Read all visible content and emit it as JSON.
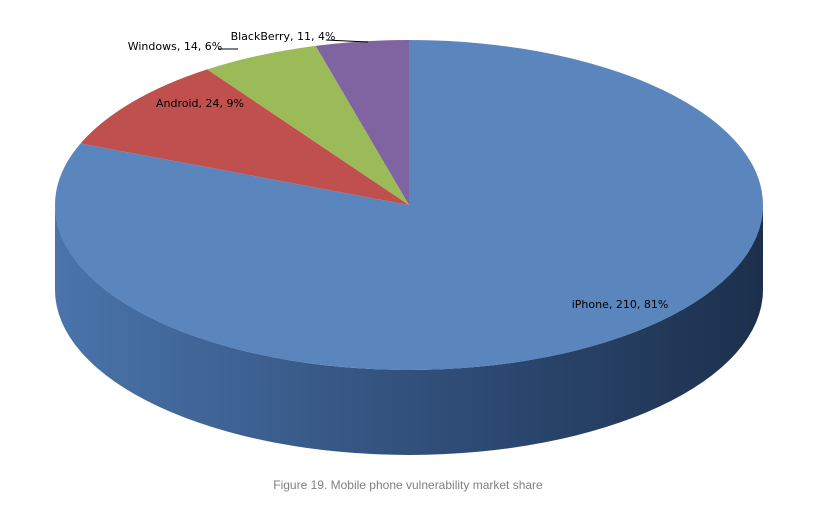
{
  "chart_data": {
    "type": "pie3d",
    "caption": "Figure 19. Mobile phone vulnerability market share",
    "categories": [
      "iPhone",
      "Android",
      "Windows",
      "BlackBerry"
    ],
    "values": [
      210,
      24,
      14,
      11
    ],
    "value_labels": [
      "iPhone, 210, 81%",
      "Android, 24, 9%",
      "Windows, 14, 6%",
      "BlackBerry, 11, 4%"
    ],
    "colors": [
      "#5b86bd",
      "#c0504d",
      "#9bbb59",
      "#8064a2"
    ]
  }
}
